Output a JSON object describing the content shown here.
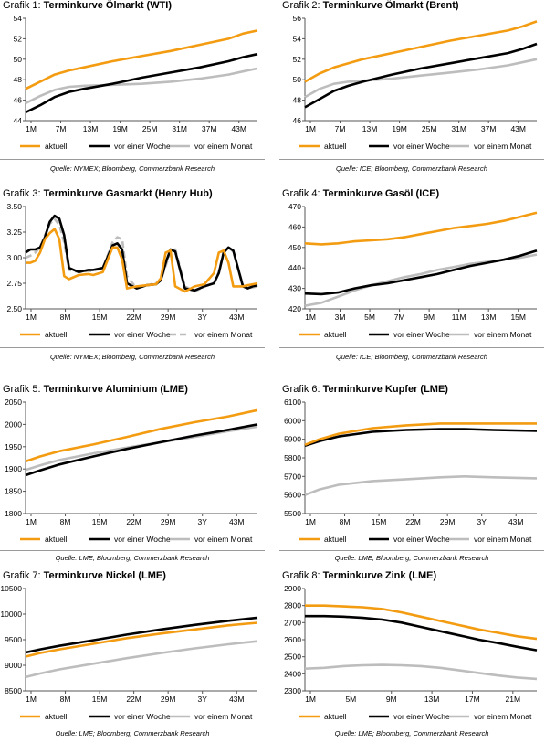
{
  "colors": {
    "aktuell": "#F39C12",
    "woche": "#000000",
    "monat": "#BDBDBD"
  },
  "legend_labels": {
    "aktuell": "aktuell",
    "woche": "vor einer Woche",
    "monat": "vor einem Monat"
  },
  "chart_data": [
    {
      "type": "line",
      "title_prefix": "Grafik 1:",
      "title_text": "Terminkurve Ölmarkt (WTI)",
      "x_labels": [
        "1M",
        "7M",
        "13M",
        "19M",
        "25M",
        "31M",
        "37M",
        "43M"
      ],
      "n": 49,
      "ylim": [
        44,
        54
      ],
      "y_ticks": [
        44,
        46,
        48,
        50,
        52,
        54
      ],
      "grid": false,
      "legend_position": "bottom",
      "series": [
        {
          "key": "aktuell",
          "name": "aktuell",
          "x": [
            1,
            4,
            7,
            10,
            13,
            19,
            25,
            31,
            37,
            43,
            46,
            49
          ],
          "y": [
            47.1,
            47.8,
            48.5,
            48.9,
            49.2,
            49.8,
            50.3,
            50.8,
            51.4,
            52.0,
            52.5,
            52.8
          ]
        },
        {
          "key": "woche",
          "name": "vor einer Woche",
          "x": [
            1,
            4,
            7,
            10,
            13,
            19,
            25,
            31,
            37,
            43,
            46,
            49
          ],
          "y": [
            44.8,
            45.5,
            46.3,
            46.8,
            47.1,
            47.6,
            48.2,
            48.7,
            49.2,
            49.8,
            50.2,
            50.5
          ]
        },
        {
          "key": "monat",
          "name": "vor einem Monat",
          "x": [
            1,
            4,
            7,
            10,
            13,
            19,
            25,
            31,
            37,
            43,
            46,
            49
          ],
          "y": [
            45.7,
            46.4,
            47.0,
            47.3,
            47.4,
            47.5,
            47.6,
            47.8,
            48.1,
            48.5,
            48.8,
            49.1
          ]
        }
      ],
      "source": "Quelle: NYMEX; Bloomberg, Commerzbank Research"
    },
    {
      "type": "line",
      "title_prefix": "Grafik 2:",
      "title_text": "Terminkurve Ölmarkt (Brent)",
      "x_labels": [
        "1M",
        "7M",
        "13M",
        "19M",
        "25M",
        "31M",
        "37M",
        "43M"
      ],
      "n": 49,
      "ylim": [
        46,
        56
      ],
      "y_ticks": [
        46,
        48,
        50,
        52,
        54,
        56
      ],
      "grid": false,
      "legend_position": "bottom",
      "series": [
        {
          "key": "aktuell",
          "name": "aktuell",
          "x": [
            1,
            4,
            7,
            10,
            13,
            19,
            25,
            31,
            37,
            43,
            46,
            49
          ],
          "y": [
            49.8,
            50.6,
            51.2,
            51.6,
            52.0,
            52.6,
            53.2,
            53.8,
            54.3,
            54.8,
            55.2,
            55.7
          ]
        },
        {
          "key": "woche",
          "name": "vor einer Woche",
          "x": [
            1,
            4,
            7,
            10,
            13,
            19,
            25,
            31,
            37,
            43,
            46,
            49
          ],
          "y": [
            47.3,
            48.1,
            48.9,
            49.4,
            49.8,
            50.5,
            51.1,
            51.6,
            52.1,
            52.6,
            53.0,
            53.5
          ]
        },
        {
          "key": "monat",
          "name": "vor einem Monat",
          "x": [
            1,
            4,
            7,
            10,
            13,
            19,
            25,
            31,
            37,
            43,
            46,
            49
          ],
          "y": [
            48.3,
            49.1,
            49.6,
            49.8,
            49.9,
            50.1,
            50.4,
            50.7,
            51.0,
            51.4,
            51.7,
            52.0
          ]
        }
      ],
      "source": "Quelle: ICE; Bloomberg, Commerzbank Research"
    },
    {
      "type": "line",
      "title_prefix": "Grafik 3:",
      "title_text": "Terminkurve Gasmarkt (Henry Hub)",
      "x_labels": [
        "1M",
        "8M",
        "15M",
        "22M",
        "29M",
        "3Y",
        "43M"
      ],
      "n": 49,
      "ylim": [
        2.5,
        3.5
      ],
      "y_ticks": [
        2.5,
        2.75,
        3.0,
        3.25,
        3.5
      ],
      "y_tick_labels": [
        "2.50",
        "2.75",
        "3.00",
        "3.25",
        "3.50"
      ],
      "grid": false,
      "legend_position": "bottom",
      "series": [
        {
          "key": "aktuell",
          "name": "aktuell",
          "x": [
            1,
            2,
            3,
            4,
            5,
            6,
            7,
            8,
            9,
            10,
            12,
            14,
            15,
            17,
            19,
            20,
            21,
            22,
            24,
            26,
            28,
            29,
            30,
            31,
            32,
            34,
            36,
            38,
            40,
            41,
            42,
            43,
            44,
            46,
            47,
            48,
            49
          ],
          "y": [
            2.95,
            2.95,
            2.97,
            3.05,
            3.18,
            3.24,
            3.28,
            3.18,
            2.82,
            2.79,
            2.83,
            2.84,
            2.83,
            2.86,
            3.1,
            3.1,
            2.98,
            2.7,
            2.72,
            2.73,
            2.74,
            2.8,
            3.05,
            3.07,
            2.72,
            2.67,
            2.72,
            2.74,
            2.85,
            3.05,
            3.07,
            2.95,
            2.72,
            2.72,
            2.73,
            2.74,
            2.75
          ]
        },
        {
          "key": "woche",
          "name": "vor einer Woche",
          "x": [
            1,
            2,
            3,
            4,
            5,
            6,
            7,
            8,
            9,
            10,
            12,
            14,
            15,
            17,
            19,
            20,
            21,
            22,
            24,
            26,
            28,
            29,
            30,
            31,
            32,
            34,
            36,
            38,
            40,
            41,
            42,
            43,
            44,
            46,
            47,
            48,
            49
          ],
          "y": [
            3.05,
            3.08,
            3.08,
            3.1,
            3.2,
            3.35,
            3.41,
            3.38,
            3.22,
            2.9,
            2.86,
            2.88,
            2.88,
            2.9,
            3.12,
            3.14,
            3.08,
            2.75,
            2.7,
            2.73,
            2.74,
            2.78,
            2.95,
            3.08,
            3.06,
            2.7,
            2.68,
            2.72,
            2.75,
            2.85,
            3.05,
            3.1,
            3.07,
            2.72,
            2.7,
            2.72,
            2.73
          ]
        },
        {
          "key": "monat",
          "name": "vor einem Monat",
          "x": [
            1,
            2,
            3,
            4,
            5,
            6,
            7,
            8,
            9,
            10,
            12,
            14,
            15,
            17,
            19,
            20,
            21,
            22,
            24,
            26,
            28,
            29,
            30,
            31,
            32,
            34,
            36,
            38,
            40,
            41,
            42,
            43,
            44,
            46,
            47,
            48,
            49
          ],
          "y": [
            3.0,
            3.02,
            3.05,
            3.1,
            3.22,
            3.33,
            3.38,
            3.32,
            3.15,
            2.88,
            2.86,
            2.87,
            2.87,
            2.9,
            3.15,
            3.2,
            3.18,
            2.82,
            2.7,
            2.73,
            2.75,
            2.78,
            2.92,
            3.06,
            3.08,
            2.72,
            2.67,
            2.72,
            2.75,
            2.86,
            3.06,
            3.1,
            3.06,
            2.73,
            2.7,
            2.71,
            2.72
          ],
          "dashed": true
        }
      ],
      "source": "Quelle: NYMEX; Bloomberg, Commerzbank Research"
    },
    {
      "type": "line",
      "title_prefix": "Grafik 4:",
      "title_text": "Terminkurve Gasöl (ICE)",
      "x_labels": [
        "1M",
        "3M",
        "5M",
        "7M",
        "9M",
        "11M",
        "13M",
        "15M"
      ],
      "n": 15,
      "ylim": [
        420,
        470
      ],
      "y_ticks": [
        420,
        430,
        440,
        450,
        460,
        470
      ],
      "grid": false,
      "legend_position": "bottom",
      "series": [
        {
          "key": "aktuell",
          "name": "aktuell",
          "x": [
            1,
            2,
            3,
            4,
            5,
            6,
            7,
            8,
            9,
            10,
            11,
            12,
            13,
            14,
            15
          ],
          "y": [
            452,
            451.5,
            452,
            453,
            453.5,
            454,
            455,
            456.5,
            458,
            459.5,
            460.5,
            461.5,
            463,
            465,
            467
          ]
        },
        {
          "key": "woche",
          "name": "vor einer Woche",
          "x": [
            1,
            2,
            3,
            4,
            5,
            6,
            7,
            8,
            9,
            10,
            11,
            12,
            13,
            14,
            15
          ],
          "y": [
            427.5,
            427.2,
            428,
            430,
            431.5,
            432.5,
            434,
            435.5,
            437,
            439,
            441,
            442.5,
            444,
            446,
            448.5
          ]
        },
        {
          "key": "monat",
          "name": "vor einem Monat",
          "x": [
            1,
            2,
            3,
            4,
            5,
            6,
            7,
            8,
            9,
            10,
            11,
            12,
            13,
            14,
            15
          ],
          "y": [
            421.5,
            423,
            426,
            429,
            431.5,
            433.5,
            435.5,
            437,
            439,
            440.5,
            442,
            443,
            444,
            445,
            446.5
          ]
        }
      ],
      "source": "Quelle: ICE; Bloomberg, Commerzbank Research"
    },
    {
      "type": "line",
      "title_prefix": "Grafik 5:",
      "title_text": " Terminkurve Aluminium (LME)",
      "x_labels": [
        "1M",
        "8M",
        "15M",
        "22M",
        "29M",
        "3Y",
        "43M"
      ],
      "n": 49,
      "ylim": [
        1800,
        2050
      ],
      "y_ticks": [
        1800,
        1850,
        1900,
        1950,
        2000,
        2050
      ],
      "grid": false,
      "legend_position": "bottom",
      "series": [
        {
          "key": "aktuell",
          "name": "aktuell",
          "x": [
            1,
            4,
            8,
            15,
            22,
            29,
            36,
            43,
            49
          ],
          "y": [
            1917,
            1928,
            1940,
            1955,
            1972,
            1990,
            2005,
            2018,
            2032
          ]
        },
        {
          "key": "woche",
          "name": "vor einer Woche",
          "x": [
            1,
            4,
            8,
            15,
            22,
            29,
            36,
            43,
            49
          ],
          "y": [
            1886,
            1897,
            1910,
            1928,
            1945,
            1960,
            1975,
            1988,
            2000
          ]
        },
        {
          "key": "monat",
          "name": "vor einem Monat",
          "x": [
            1,
            4,
            8,
            15,
            22,
            29,
            36,
            43,
            49
          ],
          "y": [
            1898,
            1908,
            1920,
            1935,
            1948,
            1960,
            1972,
            1985,
            1995
          ]
        }
      ],
      "source": "Quelle: LME; Bloomberg, Commerzbank Research"
    },
    {
      "type": "line",
      "title_prefix": "Grafik 6:",
      "title_text": "Terminkurve Kupfer (LME)",
      "x_labels": [
        "1M",
        "8M",
        "15M",
        "22M",
        "29M",
        "3Y",
        "43M"
      ],
      "n": 49,
      "ylim": [
        5500,
        6100
      ],
      "y_ticks": [
        5500,
        5600,
        5700,
        5800,
        5900,
        6000,
        6100
      ],
      "grid": false,
      "legend_position": "bottom",
      "series": [
        {
          "key": "aktuell",
          "name": "aktuell",
          "x": [
            1,
            4,
            8,
            15,
            22,
            29,
            34,
            40,
            49
          ],
          "y": [
            5870,
            5900,
            5930,
            5960,
            5975,
            5985,
            5985,
            5985,
            5985
          ]
        },
        {
          "key": "woche",
          "name": "vor einer Woche",
          "x": [
            1,
            4,
            8,
            15,
            22,
            29,
            34,
            40,
            49
          ],
          "y": [
            5865,
            5890,
            5915,
            5940,
            5950,
            5955,
            5955,
            5950,
            5945
          ]
        },
        {
          "key": "monat",
          "name": "vor einem Monat",
          "x": [
            1,
            4,
            8,
            15,
            22,
            29,
            34,
            40,
            49
          ],
          "y": [
            5600,
            5630,
            5655,
            5675,
            5685,
            5695,
            5700,
            5695,
            5690
          ]
        }
      ],
      "source": "Quelle: LME; Bloomberg, Commerzbank Research"
    },
    {
      "type": "line",
      "title_prefix": "Grafik 7:",
      "title_text": "Terminkurve Nickel (LME)",
      "x_labels": [
        "1M",
        "8M",
        "15M",
        "22M",
        "29M",
        "3Y",
        "43M"
      ],
      "n": 49,
      "ylim": [
        8500,
        10500
      ],
      "y_ticks": [
        8500,
        9000,
        9500,
        10000,
        10500
      ],
      "grid": false,
      "legend_position": "bottom",
      "series": [
        {
          "key": "aktuell",
          "name": "aktuell",
          "x": [
            1,
            4,
            8,
            15,
            22,
            29,
            36,
            43,
            49
          ],
          "y": [
            9170,
            9240,
            9310,
            9420,
            9530,
            9620,
            9700,
            9780,
            9830
          ]
        },
        {
          "key": "woche",
          "name": "vor einer Woche",
          "x": [
            1,
            4,
            8,
            15,
            22,
            29,
            36,
            43,
            49
          ],
          "y": [
            9250,
            9310,
            9380,
            9490,
            9600,
            9700,
            9790,
            9870,
            9930
          ]
        },
        {
          "key": "monat",
          "name": "vor einem Monat",
          "x": [
            1,
            4,
            8,
            15,
            22,
            29,
            36,
            43,
            49
          ],
          "y": [
            8770,
            8840,
            8920,
            9030,
            9140,
            9240,
            9330,
            9410,
            9470
          ]
        }
      ],
      "source": "Quelle: LME; Bloomberg, Commerzbank Research"
    },
    {
      "type": "line",
      "title_prefix": "Grafik 8:",
      "title_text": "Terminkurve Zink (LME)",
      "x_labels": [
        "1M",
        "5M",
        "9M",
        "13M",
        "17M",
        "21M"
      ],
      "n": 25,
      "ylim": [
        2300,
        2900
      ],
      "y_ticks": [
        2300,
        2400,
        2500,
        2600,
        2700,
        2800,
        2900
      ],
      "grid": false,
      "legend_position": "bottom",
      "series": [
        {
          "key": "aktuell",
          "name": "aktuell",
          "x": [
            1,
            3,
            5,
            7,
            9,
            11,
            13,
            15,
            17,
            19,
            21,
            23,
            25
          ],
          "y": [
            2800,
            2800,
            2795,
            2790,
            2780,
            2760,
            2735,
            2710,
            2685,
            2660,
            2640,
            2620,
            2605
          ]
        },
        {
          "key": "woche",
          "name": "vor einer Woche",
          "x": [
            1,
            3,
            5,
            7,
            9,
            11,
            13,
            15,
            17,
            19,
            21,
            23,
            25
          ],
          "y": [
            2738,
            2738,
            2735,
            2728,
            2718,
            2700,
            2675,
            2650,
            2625,
            2600,
            2580,
            2558,
            2538
          ]
        },
        {
          "key": "monat",
          "name": "vor einem Monat",
          "x": [
            1,
            3,
            5,
            7,
            9,
            11,
            13,
            15,
            17,
            19,
            21,
            23,
            25
          ],
          "y": [
            2430,
            2435,
            2445,
            2450,
            2452,
            2450,
            2445,
            2435,
            2420,
            2405,
            2390,
            2378,
            2370
          ]
        }
      ],
      "source": "Quelle: LME; Bloomberg, Commerzbank Research"
    }
  ]
}
